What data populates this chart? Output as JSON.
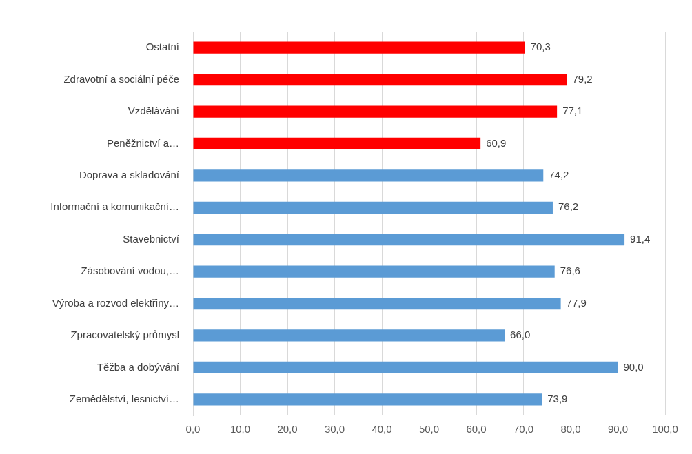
{
  "chart_data": {
    "type": "bar",
    "orientation": "horizontal",
    "categories": [
      "Ostatní",
      "Zdravotní a sociální péče",
      "Vzdělávání",
      "Peněžnictví a…",
      "Doprava a skladování",
      "Informační a komunikační…",
      "Stavebnictví",
      "Zásobování vodou,…",
      "Výroba a rozvod elektřiny…",
      "Zpracovatelský průmysl",
      "Těžba a dobývání",
      "Zemědělství, lesnictví…"
    ],
    "values": [
      70.3,
      79.2,
      77.1,
      60.9,
      74.2,
      76.2,
      91.4,
      76.6,
      77.9,
      66.0,
      90.0,
      73.9
    ],
    "value_labels": [
      "70,3",
      "79,2",
      "77,1",
      "60,9",
      "74,2",
      "76,2",
      "91,4",
      "76,6",
      "77,9",
      "66,0",
      "90,0",
      "73,9"
    ],
    "colors": [
      "#ff0000",
      "#ff0000",
      "#ff0000",
      "#ff0000",
      "#5b9bd5",
      "#5b9bd5",
      "#5b9bd5",
      "#5b9bd5",
      "#5b9bd5",
      "#5b9bd5",
      "#5b9bd5",
      "#5b9bd5"
    ],
    "xlim": [
      0,
      100
    ],
    "xticks": [
      {
        "value": 0,
        "label": "0,0"
      },
      {
        "value": 10,
        "label": "10,0"
      },
      {
        "value": 20,
        "label": "20,0"
      },
      {
        "value": 30,
        "label": "30,0"
      },
      {
        "value": 40,
        "label": "40,0"
      },
      {
        "value": 50,
        "label": "50,0"
      },
      {
        "value": 60,
        "label": "60,0"
      },
      {
        "value": 70,
        "label": "70,0"
      },
      {
        "value": 80,
        "label": "80,0"
      },
      {
        "value": 90,
        "label": "90,0"
      },
      {
        "value": 100,
        "label": "100,0"
      }
    ],
    "grid": "x",
    "legend": false
  }
}
